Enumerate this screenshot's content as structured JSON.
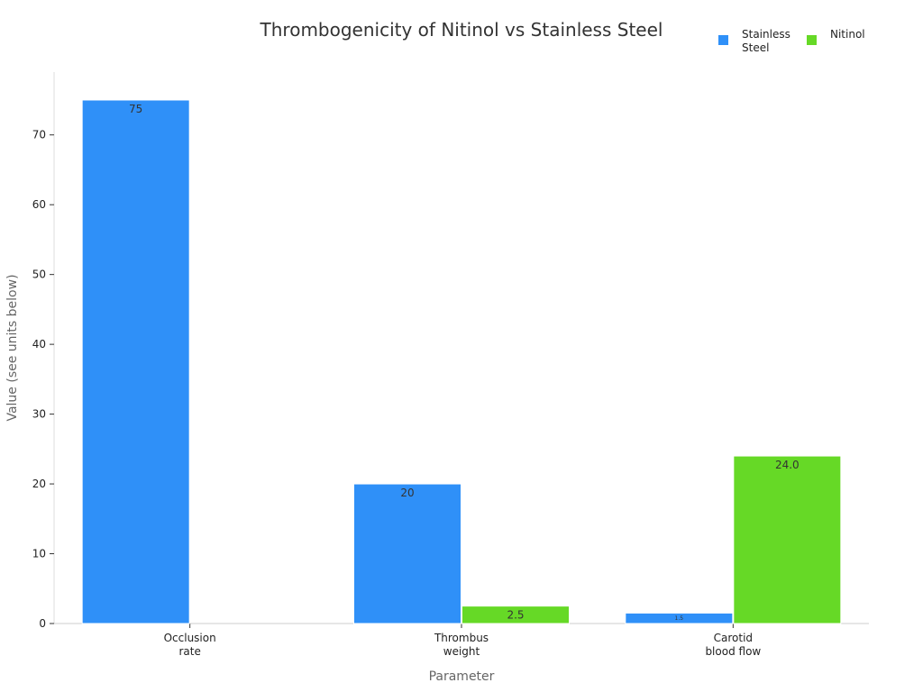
{
  "chart_data": {
    "type": "bar",
    "title": "Thrombogenicity of Nitinol vs Stainless Steel",
    "xlabel": "Parameter",
    "ylabel": "Value (see units below)",
    "categories": [
      [
        "Occlusion",
        "rate"
      ],
      [
        "Thrombus",
        "weight"
      ],
      [
        "Carotid",
        "blood flow"
      ]
    ],
    "series": [
      {
        "name": [
          "Stainless",
          "Steel"
        ],
        "color": "#2f90f8",
        "values": [
          75,
          20,
          1.5
        ],
        "labels": [
          "75",
          "20",
          "1.5"
        ]
      },
      {
        "name": [
          "Nitinol"
        ],
        "color": "#66d926",
        "values": [
          0,
          2.5,
          24.0
        ],
        "labels": [
          "",
          "2.5",
          "24.0"
        ]
      }
    ],
    "ylim": [
      0,
      79
    ],
    "yticks": [
      0,
      10,
      20,
      30,
      40,
      50,
      60,
      70
    ],
    "grid": false,
    "legend": "top-right"
  }
}
